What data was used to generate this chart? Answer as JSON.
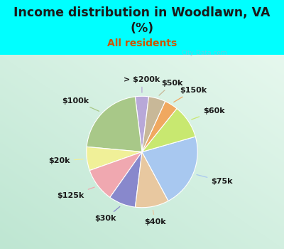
{
  "title": "Income distribution in Woodlawn, VA\n(%)",
  "subtitle": "All residents",
  "title_color": "#1a1a1a",
  "subtitle_color": "#cc5500",
  "background_color": "#00ffff",
  "inner_bg_color": "#d4ede0",
  "labels": [
    "> $200k",
    "$100k",
    "$20k",
    "$125k",
    "$30k",
    "$40k",
    "$75k",
    "$60k",
    "$150k",
    "$50k"
  ],
  "sizes": [
    4,
    22,
    7,
    10,
    8,
    10,
    22,
    10,
    4,
    5
  ],
  "colors": [
    "#b8a8d8",
    "#a8c888",
    "#f0f098",
    "#f0a8b0",
    "#8888cc",
    "#e8c8a0",
    "#a8c8f0",
    "#c8e870",
    "#f0a860",
    "#c8b898"
  ],
  "label_fontsize": 8,
  "title_fontsize": 12.5,
  "subtitle_fontsize": 10,
  "startangle": 83,
  "wedge_linewidth": 0.8,
  "wedge_edgecolor": "white",
  "watermark": "City-Data.com"
}
